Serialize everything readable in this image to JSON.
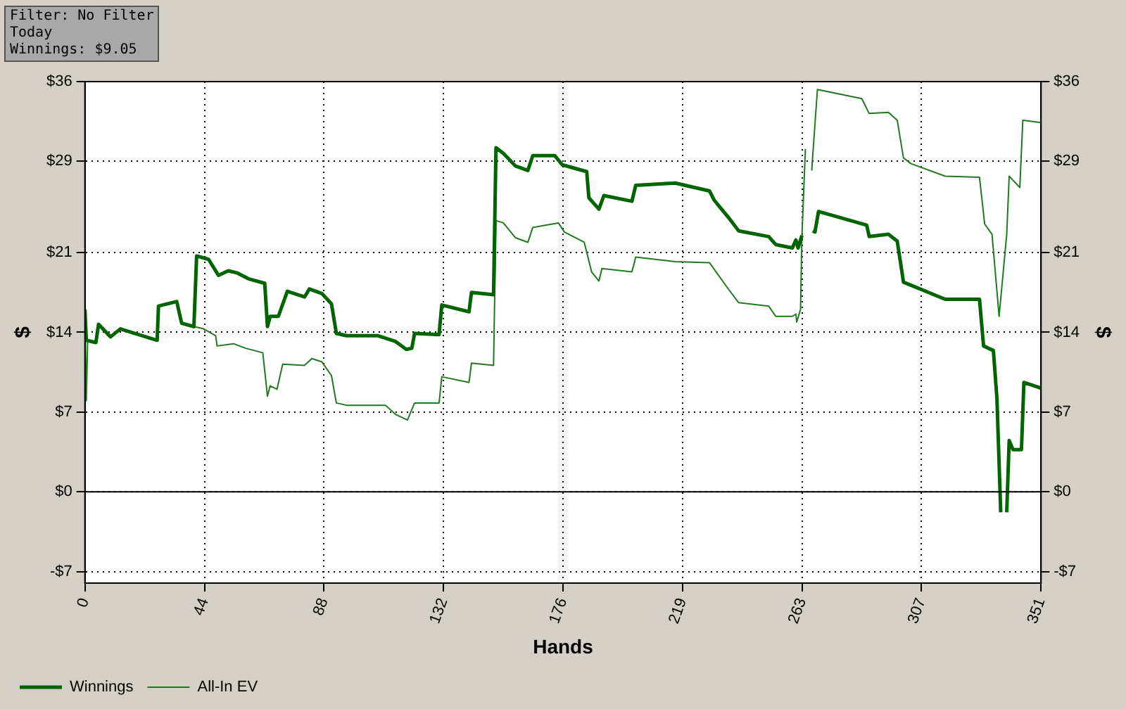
{
  "chart_data": {
    "type": "line",
    "xlabel": "Hands",
    "ylabel": "$",
    "y2label": "$",
    "annotations": [
      "Filter: No Filter",
      "Today",
      "Winnings: $9.05"
    ],
    "xlim": [
      0,
      351
    ],
    "xticks": [
      0,
      {
        "value": 43.875,
        "label": "44"
      },
      {
        "value": 87.75,
        "label": "88"
      },
      {
        "value": 131.625,
        "label": "132"
      },
      {
        "value": 175.5,
        "label": "176"
      },
      {
        "value": 219.375,
        "label": "219"
      },
      {
        "value": 263.25,
        "label": "263"
      },
      {
        "value": 307.125,
        "label": "307"
      },
      351
    ],
    "ylim": [
      -8,
      36
    ],
    "yticks": [
      {
        "value": -7,
        "label": "-$7"
      },
      {
        "value": 0,
        "label": "$0"
      },
      {
        "value": 7,
        "label": "$7"
      },
      {
        "value": 14,
        "label": "$14"
      },
      {
        "value": 21,
        "label": "$21"
      },
      {
        "value": 29,
        "label": "$29"
      },
      {
        "value": 36,
        "label": "$36"
      }
    ],
    "y2lim": [
      -8,
      36
    ],
    "y2ticks": [
      {
        "value": -7,
        "label": "-$7"
      },
      {
        "value": 0,
        "label": "$0"
      },
      {
        "value": 7,
        "label": "$7"
      },
      {
        "value": 14,
        "label": "$14"
      },
      {
        "value": 21,
        "label": "$21"
      },
      {
        "value": 29,
        "label": "$29"
      },
      {
        "value": 36,
        "label": "$36"
      }
    ],
    "ref_lines": [
      {
        "axis": "y",
        "value": 0,
        "color": "#000000",
        "line_style": "solid"
      }
    ],
    "grid": true,
    "legend": "bottom left",
    "marker": "none",
    "line_style": "solid",
    "series": [
      {
        "name": "Winnings",
        "color": "#006400",
        "x": [
          0,
          0.5,
          4,
          5,
          9.4,
          13,
          26.5,
          27,
          33.7,
          35.5,
          40,
          41,
          45.4,
          49,
          52.6,
          56,
          60,
          66,
          67,
          68,
          71,
          74.3,
          80.6,
          82.4,
          87,
          90.5,
          92.3,
          96,
          107.6,
          114,
          118,
          120,
          121,
          130,
          131,
          141,
          141.9,
          150,
          150.9,
          153.6,
          158,
          162.6,
          164.4,
          172.5,
          175.2,
          184.2,
          185,
          188.7,
          190.5,
          200.8,
          202.2,
          216.7,
          229.3,
          231,
          236.5,
          240,
          251,
          253.6,
          259.7,
          261,
          261.8,
          263.2,
          264.5,
          266.2,
          267.2,
          268,
          269.3,
          287,
          287.9,
          295,
          298.2,
          300.5,
          315.8,
          328.4,
          329.9,
          333.5,
          334.8,
          336.2,
          337,
          337.8,
          338.4,
          339.3,
          340.7,
          343.8,
          344.7,
          351
        ],
        "values": [
          16,
          13.3,
          13.1,
          14.7,
          13.6,
          14.3,
          13.3,
          16.3,
          16.7,
          14.8,
          14.5,
          20.7,
          20.4,
          19,
          19.4,
          19.2,
          18.7,
          18.3,
          14.5,
          15.4,
          15.4,
          17.6,
          17.1,
          17.8,
          17.4,
          16.5,
          13.9,
          13.7,
          13.7,
          13.2,
          12.5,
          12.6,
          13.9,
          13.8,
          16.4,
          15.8,
          17.5,
          17.3,
          30.2,
          29.7,
          28.6,
          28.2,
          29.5,
          29.5,
          28.7,
          28.1,
          25.8,
          24.8,
          26,
          25.5,
          26.9,
          27.1,
          26.4,
          25.6,
          24,
          22.9,
          22.4,
          21.7,
          21.4,
          22.1,
          21.4,
          22.5,
          null,
          null,
          22.9,
          22.8,
          24.6,
          23.4,
          22.4,
          22.6,
          22,
          18.4,
          16.9,
          16.9,
          12.8,
          12.4,
          8.2,
          -1.8,
          null,
          null,
          -1.8,
          4.5,
          3.7,
          3.7,
          9.6,
          9.1
        ]
      },
      {
        "name": "All-In EV",
        "color": "#1f7a1f",
        "x": [
          0,
          0.5,
          1,
          4,
          5,
          9.4,
          13,
          26.5,
          27,
          33.7,
          35.5,
          40,
          43.6,
          48,
          48.5,
          54.5,
          59,
          65.3,
          67,
          68,
          70.5,
          72.6,
          80.6,
          83.3,
          87,
          90.5,
          92.3,
          96,
          110.3,
          114,
          118.4,
          121,
          130,
          131,
          141,
          141.9,
          150,
          150.9,
          153.6,
          158,
          162.6,
          164.4,
          173.8,
          176,
          183.3,
          186,
          188.7,
          189.8,
          200.8,
          202.2,
          216.7,
          229.3,
          236.5,
          240,
          251,
          253.6,
          259.7,
          261,
          261.3,
          262.7,
          263.2,
          264.5,
          265.4,
          266.8,
          268.9,
          285.2,
          287.9,
          295,
          298.2,
          300.5,
          303.2,
          315.8,
          328.4,
          330.3,
          333,
          335.6,
          338.4,
          339.3,
          343.2,
          344.3,
          351
        ],
        "values": [
          16,
          8,
          13.3,
          13.1,
          14.7,
          13.6,
          14.3,
          13.3,
          16.3,
          16.7,
          14.8,
          14.5,
          14.3,
          13.7,
          12.8,
          13,
          12.6,
          12.2,
          8.4,
          9.3,
          9,
          11.2,
          11.1,
          11.7,
          11.4,
          10.2,
          7.8,
          7.6,
          7.6,
          6.8,
          6.3,
          7.8,
          7.8,
          10.1,
          9.6,
          11.3,
          11.1,
          23.8,
          23.6,
          22.3,
          21.9,
          23.2,
          23.6,
          22.8,
          21.9,
          19.3,
          18.5,
          19.6,
          19.3,
          20.6,
          20.2,
          20.1,
          17.7,
          16.6,
          16.3,
          15.4,
          15.4,
          15.6,
          14.9,
          16,
          22.4,
          30.1,
          null,
          28.2,
          35.3,
          34.5,
          33.2,
          33.3,
          32.6,
          29.3,
          28.8,
          27.7,
          27.6,
          23.5,
          22.6,
          15.4,
          22.6,
          27.7,
          26.7,
          32.6,
          32.4
        ]
      }
    ]
  }
}
